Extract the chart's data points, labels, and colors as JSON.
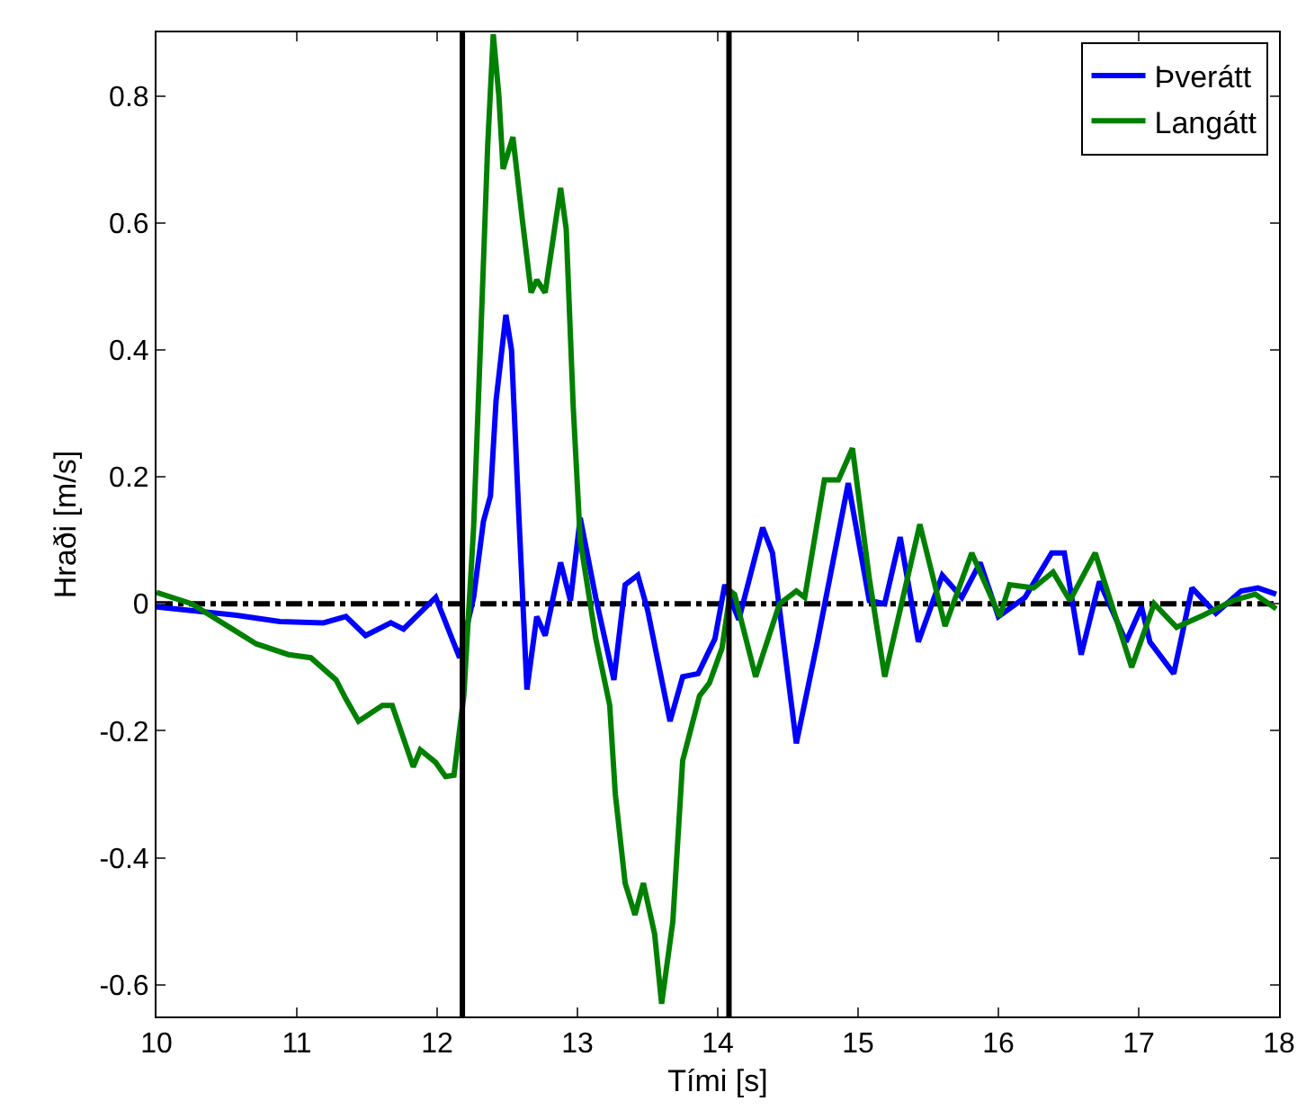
{
  "chart_data": {
    "type": "line",
    "xlabel": "Tími [s]",
    "ylabel": "Hraði [m/s]",
    "xlim": [
      10,
      18
    ],
    "xticks": [
      10,
      11,
      12,
      13,
      14,
      15,
      16,
      17,
      18
    ],
    "ylim": [
      -0.65,
      0.9
    ],
    "yticks": [
      -0.6,
      -0.4,
      -0.2,
      0,
      0.2,
      0.4,
      0.6,
      0.8
    ],
    "grid": false,
    "legend": "top right",
    "line_style": "solid",
    "marker": "none",
    "ref_lines": [
      {
        "axis": "x",
        "value": 12.18,
        "color": "#000000",
        "line_style": "solid"
      },
      {
        "axis": "x",
        "value": 14.08,
        "color": "#000000",
        "line_style": "solid"
      },
      {
        "axis": "y",
        "value": 0,
        "color": "#000000",
        "line_style": "dashdot"
      }
    ],
    "series": [
      {
        "name": "Þverátt",
        "color": "#0000ff",
        "x": [
          10,
          10.57,
          10.88,
          11.19,
          11.35,
          11.49,
          11.67,
          11.76,
          11.99,
          12.16,
          12.26,
          12.33,
          12.38,
          12.42,
          12.49,
          12.53,
          12.58,
          12.64,
          12.71,
          12.77,
          12.88,
          12.95,
          13.02,
          13.13,
          13.26,
          13.34,
          13.43,
          13.5,
          13.66,
          13.75,
          13.86,
          13.98,
          14.05,
          14.15,
          14.32,
          14.39,
          14.56,
          14.71,
          14.93,
          15.08,
          15.19,
          15.3,
          15.43,
          15.6,
          15.74,
          15.87,
          16.0,
          16.19,
          16.38,
          16.47,
          16.59,
          16.72,
          16.91,
          17.02,
          17.08,
          17.25,
          17.38,
          17.55,
          17.73,
          17.85,
          17.98
        ],
        "values": [
          -0.005,
          -0.018,
          -0.028,
          -0.03,
          -0.02,
          -0.05,
          -0.03,
          -0.04,
          0.01,
          -0.085,
          0.01,
          0.13,
          0.17,
          0.32,
          0.455,
          0.4,
          0.15,
          -0.135,
          -0.02,
          -0.05,
          0.065,
          0.005,
          0.135,
          0.01,
          -0.12,
          0.03,
          0.045,
          -0.01,
          -0.185,
          -0.115,
          -0.11,
          -0.055,
          0.03,
          -0.025,
          0.12,
          0.08,
          -0.22,
          -0.06,
          0.19,
          0.005,
          0,
          0.105,
          -0.06,
          0.045,
          0.01,
          0.065,
          -0.02,
          0.01,
          0.08,
          0.08,
          -0.08,
          0.035,
          -0.06,
          -0.005,
          -0.06,
          -0.11,
          0.025,
          -0.015,
          0.02,
          0.025,
          0.015
        ]
      },
      {
        "name": "Langátt",
        "color": "#008000",
        "x": [
          10,
          10.25,
          10.71,
          10.94,
          11.1,
          11.28,
          11.35,
          11.44,
          11.61,
          11.68,
          11.83,
          11.88,
          11.99,
          12.06,
          12.12,
          12.19,
          12.26,
          12.31,
          12.36,
          12.4,
          12.44,
          12.47,
          12.54,
          12.61,
          12.67,
          12.71,
          12.77,
          12.88,
          12.92,
          12.97,
          13.02,
          13.13,
          13.23,
          13.27,
          13.34,
          13.41,
          13.47,
          13.55,
          13.6,
          13.68,
          13.75,
          13.87,
          13.94,
          14.03,
          14.09,
          14.12,
          14.27,
          14.44,
          14.56,
          14.62,
          14.76,
          14.86,
          14.96,
          15.08,
          15.19,
          15.44,
          15.62,
          15.81,
          16.01,
          16.08,
          16.25,
          16.39,
          16.51,
          16.69,
          16.95,
          17.11,
          17.27,
          17.46,
          17.67,
          17.83,
          17.98
        ],
        "values": [
          0.018,
          0,
          -0.063,
          -0.08,
          -0.085,
          -0.12,
          -0.15,
          -0.185,
          -0.16,
          -0.16,
          -0.257,
          -0.23,
          -0.25,
          -0.272,
          -0.27,
          -0.145,
          0.12,
          0.415,
          0.72,
          0.897,
          0.8,
          0.685,
          0.735,
          0.6,
          0.49,
          0.51,
          0.49,
          0.655,
          0.59,
          0.31,
          0.1,
          -0.054,
          -0.16,
          -0.3,
          -0.44,
          -0.49,
          -0.44,
          -0.52,
          -0.63,
          -0.5,
          -0.247,
          -0.145,
          -0.125,
          -0.07,
          0.02,
          0.015,
          -0.115,
          0,
          0.02,
          0.01,
          0.195,
          0.195,
          0.245,
          0.04,
          -0.115,
          0.125,
          -0.035,
          0.08,
          -0.02,
          0.03,
          0.025,
          0.05,
          0.005,
          0.08,
          -0.1,
          0,
          -0.037,
          -0.018,
          0.005,
          0.015,
          -0.008
        ]
      }
    ]
  }
}
